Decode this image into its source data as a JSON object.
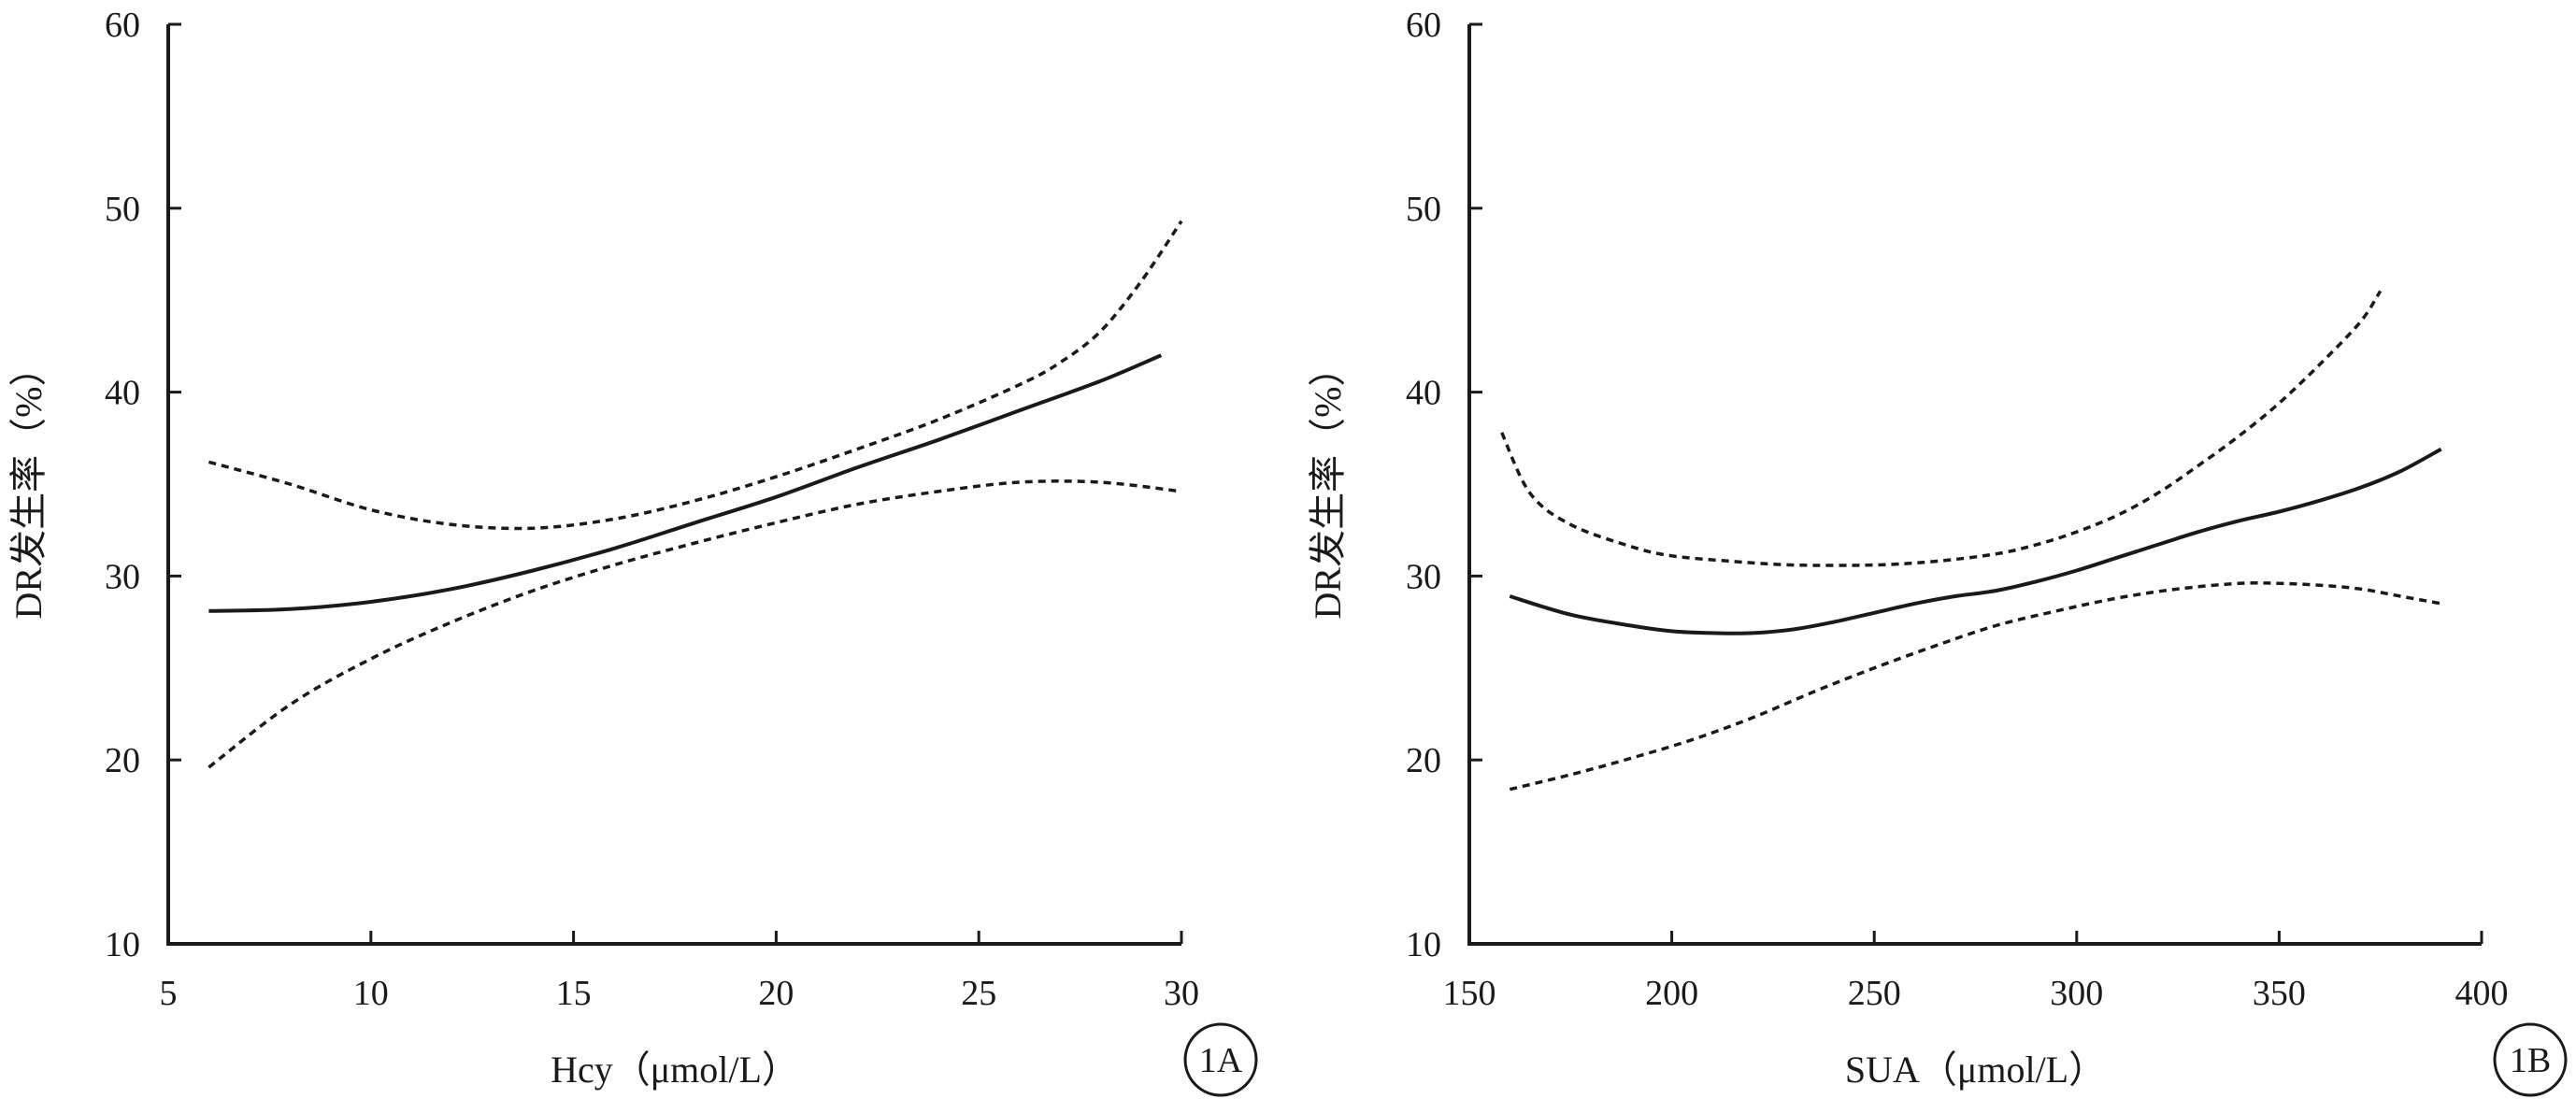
{
  "chart_data": [
    {
      "type": "line",
      "panel_label": "1A",
      "xlabel": "Hcy（μmol/L）",
      "ylabel": "DR发生率（%）",
      "xlim": [
        5,
        30
      ],
      "ylim": [
        10,
        60
      ],
      "xticks": [
        5,
        10,
        15,
        20,
        25,
        30
      ],
      "yticks": [
        10,
        20,
        30,
        40,
        50,
        60
      ],
      "grid": false,
      "series": [
        {
          "style": "solid",
          "x": [
            6,
            8,
            10,
            12,
            14,
            16,
            18,
            20,
            22,
            24,
            26,
            28,
            29.5
          ],
          "y": [
            28.1,
            28.2,
            28.6,
            29.3,
            30.3,
            31.5,
            32.9,
            34.3,
            35.9,
            37.4,
            39.0,
            40.6,
            42.0
          ]
        },
        {
          "style": "dotted",
          "x": [
            6,
            8,
            10,
            12,
            14,
            16,
            18,
            20,
            22,
            24,
            26,
            27,
            28,
            29,
            30
          ],
          "y": [
            36.2,
            35.0,
            33.6,
            32.8,
            32.6,
            33.1,
            34.1,
            35.4,
            36.9,
            38.5,
            40.4,
            41.6,
            43.3,
            46.0,
            49.3
          ]
        },
        {
          "style": "dotted",
          "x": [
            6,
            8,
            10,
            12,
            14,
            16,
            18,
            20,
            22,
            24,
            26,
            28,
            30
          ],
          "y": [
            19.6,
            23.0,
            25.5,
            27.5,
            29.2,
            30.6,
            31.8,
            32.9,
            33.9,
            34.6,
            35.1,
            35.1,
            34.6
          ]
        }
      ]
    },
    {
      "type": "line",
      "panel_label": "1B",
      "xlabel": "SUA（μmol/L）",
      "ylabel": "DR发生率（%）",
      "xlim": [
        150,
        400
      ],
      "ylim": [
        10,
        60
      ],
      "xticks": [
        150,
        200,
        250,
        300,
        350,
        400
      ],
      "yticks": [
        10,
        20,
        30,
        40,
        50,
        60
      ],
      "grid": false,
      "series": [
        {
          "style": "solid",
          "x": [
            160,
            175,
            190,
            200,
            210,
            220,
            230,
            240,
            250,
            260,
            270,
            280,
            290,
            300,
            310,
            320,
            330,
            340,
            350,
            360,
            370,
            380,
            390
          ],
          "y": [
            28.9,
            27.9,
            27.3,
            27.0,
            26.9,
            26.9,
            27.1,
            27.5,
            28.0,
            28.5,
            28.9,
            29.2,
            29.7,
            30.3,
            31.0,
            31.7,
            32.4,
            33.0,
            33.5,
            34.1,
            34.8,
            35.7,
            36.9
          ]
        },
        {
          "style": "dotted",
          "x": [
            158,
            165,
            175,
            190,
            200,
            215,
            230,
            250,
            265,
            280,
            290,
            300,
            310,
            320,
            330,
            340,
            350,
            360,
            370,
            375
          ],
          "y": [
            37.8,
            34.5,
            32.8,
            31.6,
            31.1,
            30.8,
            30.6,
            30.6,
            30.8,
            31.2,
            31.7,
            32.4,
            33.3,
            34.5,
            36.0,
            37.6,
            39.4,
            41.5,
            43.8,
            45.5
          ]
        },
        {
          "style": "dotted",
          "x": [
            160,
            175,
            190,
            205,
            220,
            235,
            250,
            265,
            280,
            295,
            310,
            325,
            340,
            350,
            360,
            370,
            380,
            390
          ],
          "y": [
            18.4,
            19.2,
            20.1,
            21.1,
            22.3,
            23.7,
            25.0,
            26.2,
            27.3,
            28.1,
            28.8,
            29.3,
            29.6,
            29.6,
            29.5,
            29.3,
            28.9,
            28.5
          ]
        }
      ]
    }
  ]
}
